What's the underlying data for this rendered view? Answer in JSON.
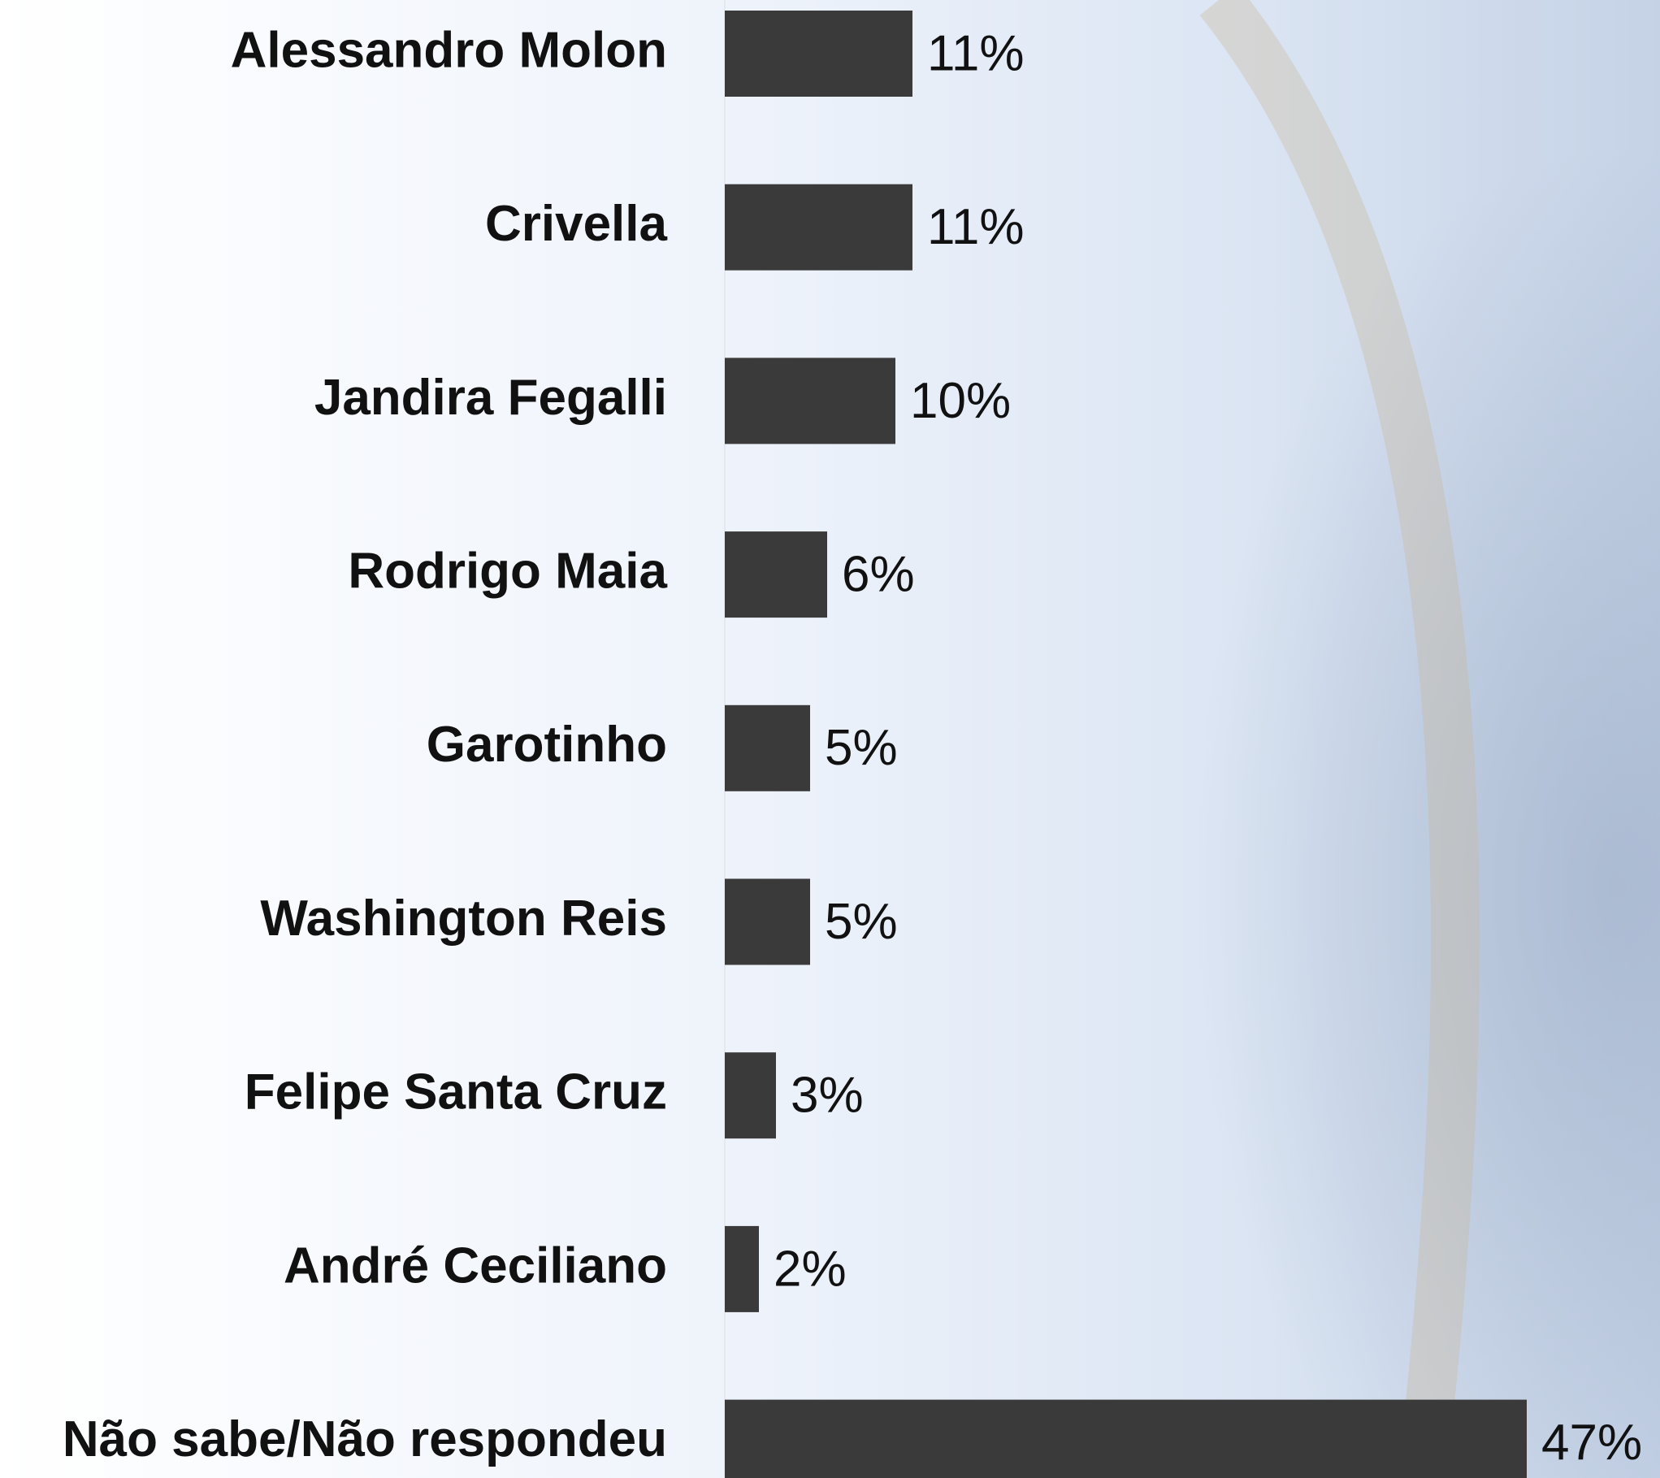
{
  "chart_data": {
    "type": "bar",
    "orientation": "horizontal",
    "categories": [
      "Alessandro Molon",
      "Crivella",
      "Jandira Fegalli",
      "Rodrigo Maia",
      "Garotinho",
      "Washington Reis",
      "Felipe Santa Cruz",
      "André Ceciliano",
      "Não sabe/Não respondeu"
    ],
    "values": [
      11,
      11,
      10,
      6,
      5,
      5,
      3,
      2,
      47
    ],
    "value_labels": [
      "11%",
      "11%",
      "10%",
      "6%",
      "5%",
      "5%",
      "3%",
      "2%",
      "47%"
    ],
    "color": "#3a3a3a"
  }
}
